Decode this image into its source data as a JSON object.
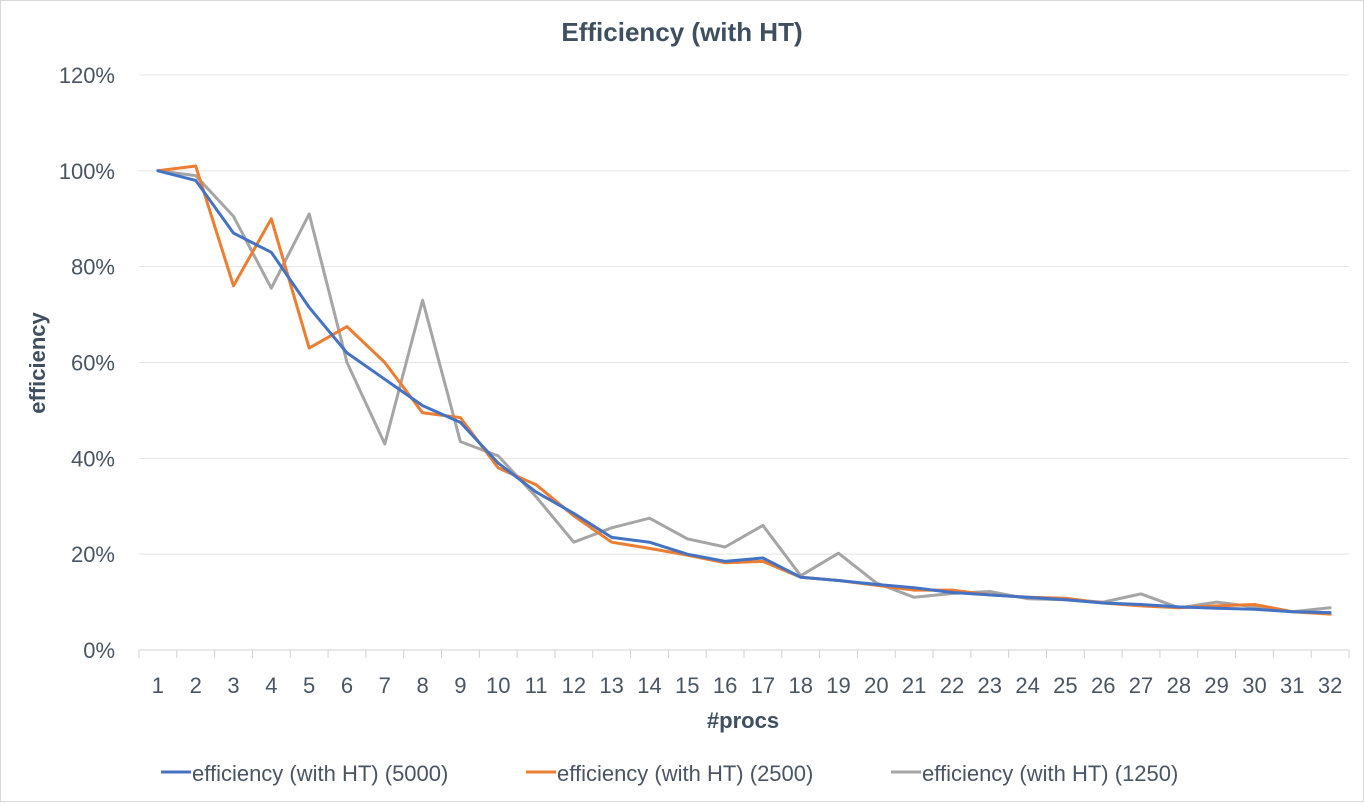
{
  "chart_data": {
    "type": "line",
    "title": "Efficiency (with HT)",
    "xlabel": "#procs",
    "ylabel": "efficiency",
    "ylim": [
      0,
      1.2
    ],
    "yticks": [
      "0%",
      "20%",
      "40%",
      "60%",
      "80%",
      "100%",
      "120%"
    ],
    "grid": true,
    "legend": "bottom",
    "x": [
      "1",
      "2",
      "3",
      "4",
      "5",
      "6",
      "7",
      "8",
      "9",
      "10",
      "11",
      "12",
      "13",
      "14",
      "15",
      "16",
      "17",
      "18",
      "19",
      "20",
      "21",
      "22",
      "23",
      "24",
      "25",
      "26",
      "27",
      "28",
      "29",
      "30",
      "31",
      "32"
    ],
    "series": [
      {
        "name": "efficiency (with HT) (5000)",
        "color": "#4472c4",
        "values": [
          1.0,
          0.98,
          0.87,
          0.83,
          0.715,
          0.62,
          0.565,
          0.51,
          0.475,
          0.39,
          0.33,
          0.285,
          0.235,
          0.225,
          0.2,
          0.185,
          0.192,
          0.152,
          0.145,
          0.137,
          0.13,
          0.12,
          0.115,
          0.11,
          0.105,
          0.098,
          0.095,
          0.09,
          0.087,
          0.085,
          0.08,
          0.078
        ]
      },
      {
        "name": "efficiency (with HT) (2500)",
        "color": "#ed7d31",
        "values": [
          1.0,
          1.01,
          0.76,
          0.9,
          0.63,
          0.675,
          0.6,
          0.495,
          0.485,
          0.38,
          0.345,
          0.28,
          0.225,
          0.212,
          0.198,
          0.182,
          0.185,
          0.152,
          0.145,
          0.135,
          0.125,
          0.125,
          0.115,
          0.11,
          0.108,
          0.098,
          0.092,
          0.088,
          0.092,
          0.095,
          0.08,
          0.075
        ]
      },
      {
        "name": "efficiency (with HT) (1250)",
        "color": "#a5a5a5",
        "values": [
          1.0,
          0.99,
          0.905,
          0.755,
          0.91,
          0.6,
          0.43,
          0.73,
          0.435,
          0.405,
          0.32,
          0.225,
          0.255,
          0.275,
          0.232,
          0.215,
          0.26,
          0.155,
          0.202,
          0.14,
          0.11,
          0.118,
          0.122,
          0.107,
          0.105,
          0.1,
          0.117,
          0.088,
          0.1,
          0.09,
          0.08,
          0.088
        ]
      }
    ]
  }
}
